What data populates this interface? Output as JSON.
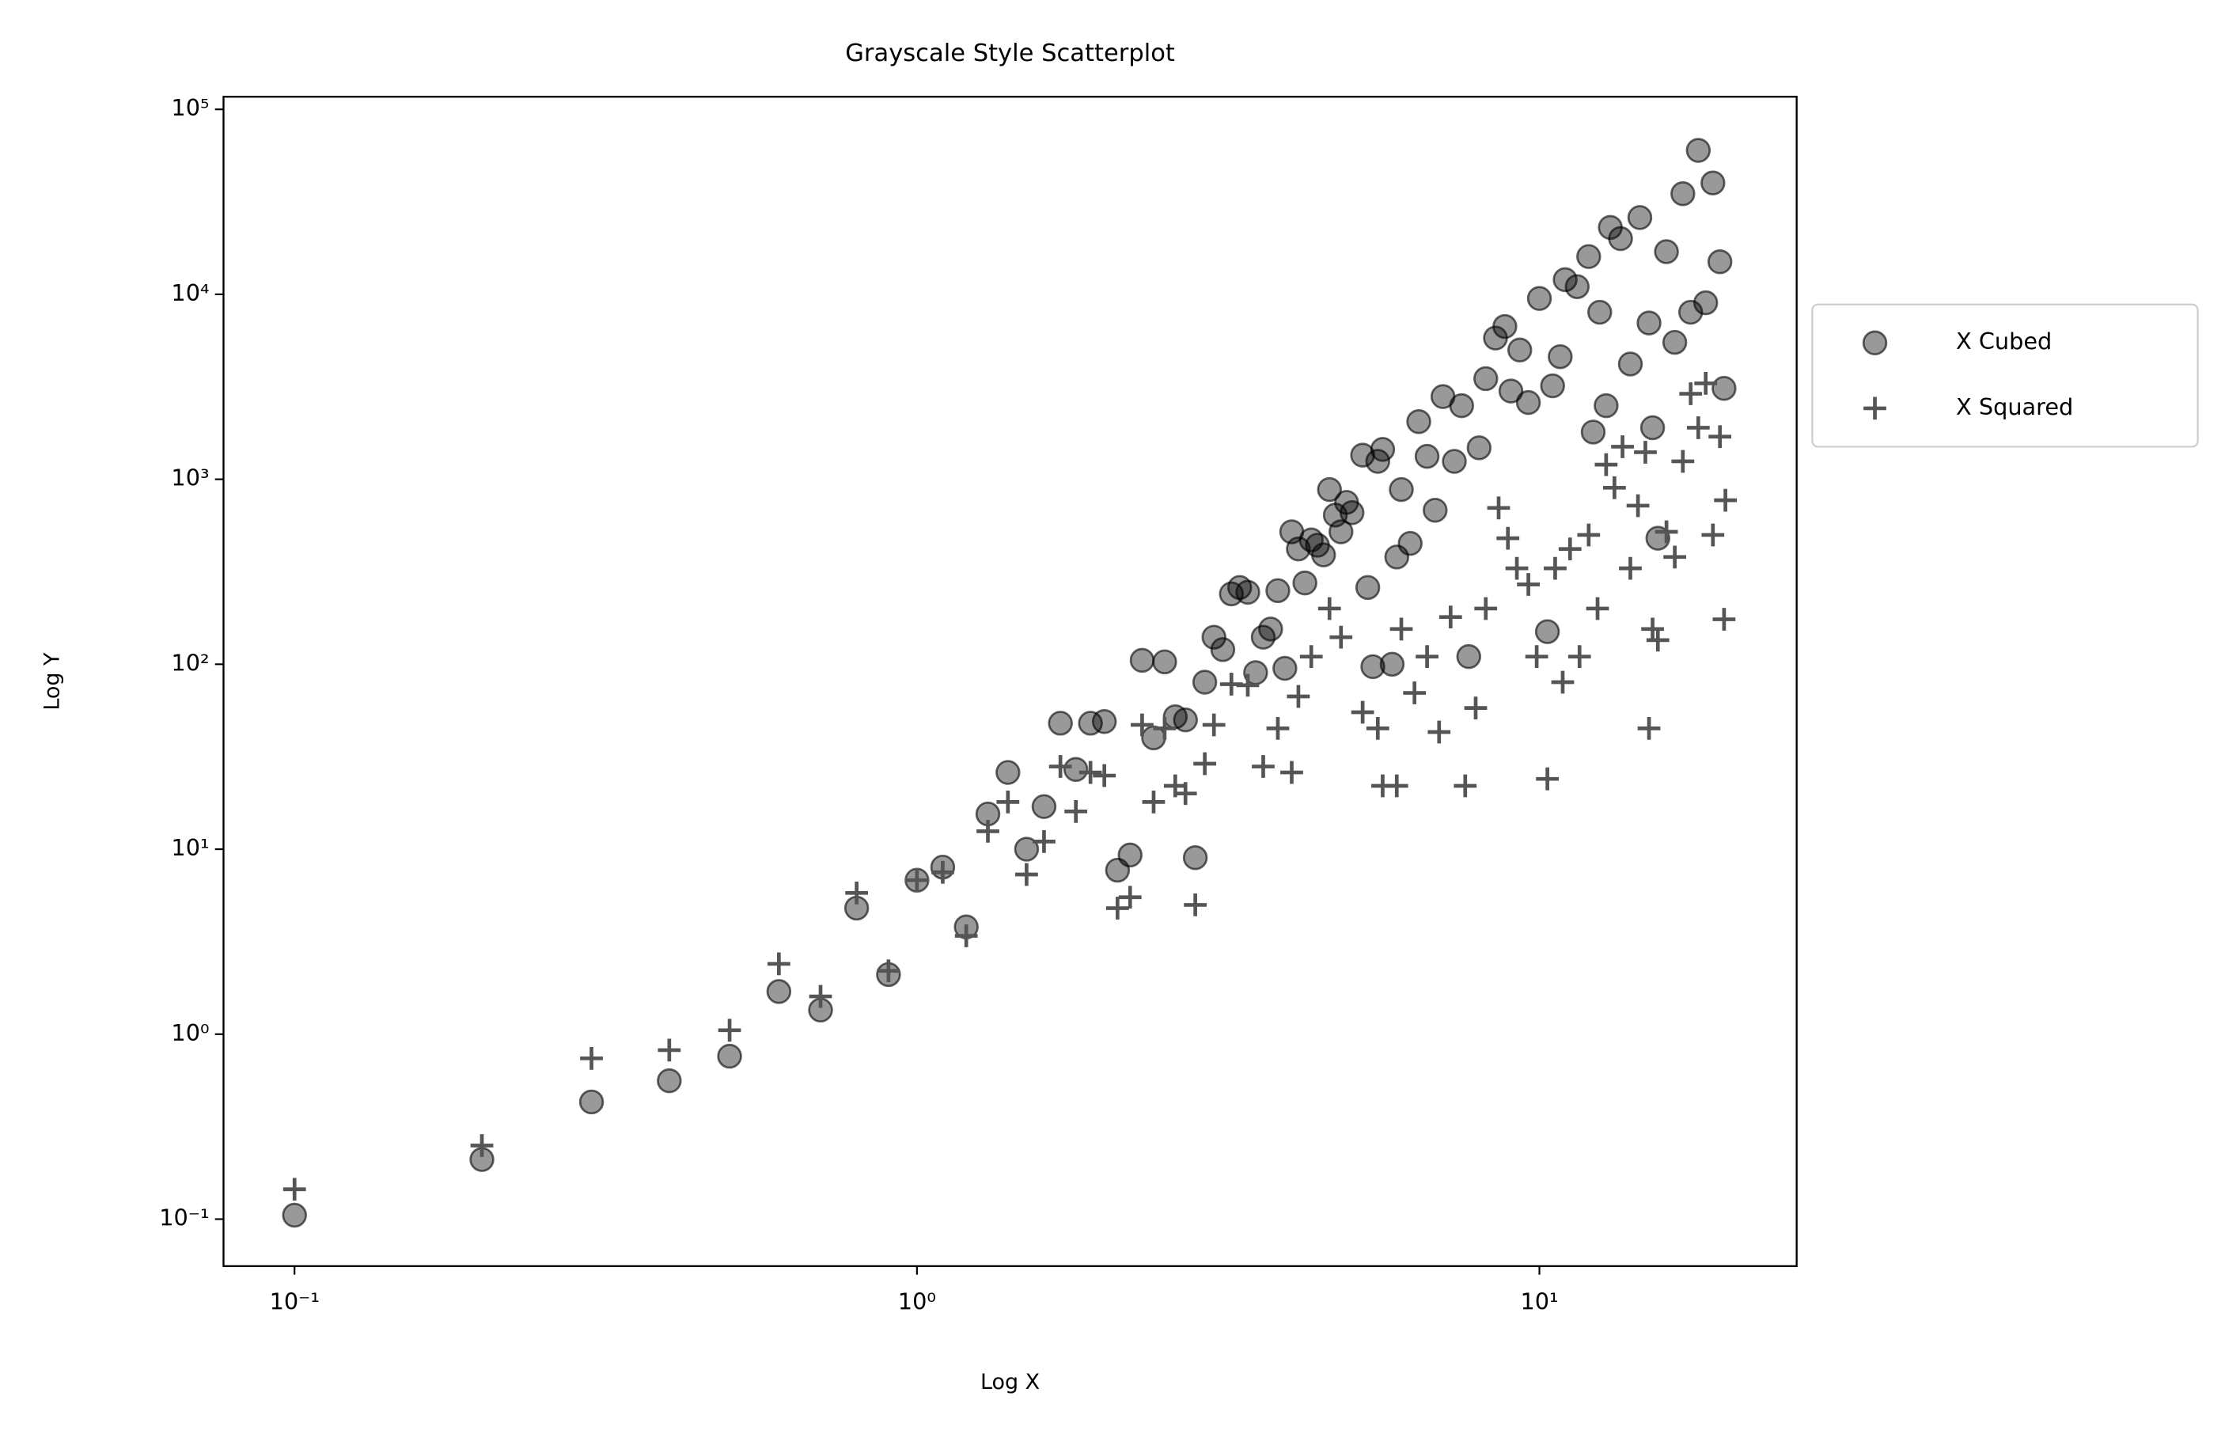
{
  "chart_data": {
    "type": "scatter",
    "title": "Grayscale Style Scatterplot",
    "x_label": "Log X",
    "y_label": "Log Y",
    "x_scale": "log",
    "y_scale": "log",
    "legend": "right",
    "xlim": [
      0.0769,
      25.9
    ],
    "ylim": [
      0.0557,
      117000
    ],
    "xticks": [
      {
        "value": 0.1,
        "label": "10⁻¹"
      },
      {
        "value": 1,
        "label": "10⁰"
      },
      {
        "value": 10,
        "label": "10¹"
      }
    ],
    "yticks": [
      {
        "value": 0.1,
        "label": "10⁻¹"
      },
      {
        "value": 1,
        "label": "10⁰"
      },
      {
        "value": 10,
        "label": "10¹"
      },
      {
        "value": 100,
        "label": "10²"
      },
      {
        "value": 1000,
        "label": "10³"
      },
      {
        "value": 10000,
        "label": "10⁴"
      },
      {
        "value": 100000,
        "label": "10⁵"
      }
    ],
    "series": [
      {
        "name": "X Cubed",
        "marker": "circle",
        "color": "#000000",
        "alpha": 0.4,
        "x": [
          0.1,
          0.2,
          0.3,
          0.4,
          0.5,
          0.6,
          0.7,
          0.8,
          0.9,
          1.0,
          1.1,
          1.2,
          1.3,
          1.4,
          1.5,
          1.6,
          1.7,
          1.8,
          1.9,
          2.0,
          2.1,
          2.2,
          2.3,
          2.4,
          2.5,
          2.6,
          2.7,
          2.8,
          2.9,
          3.0,
          3.1,
          3.2,
          3.3,
          3.4,
          3.5,
          3.6,
          3.7,
          3.8,
          3.9,
          4.0,
          4.1,
          4.2,
          4.3,
          4.4,
          4.5,
          4.6,
          4.7,
          4.8,
          4.9,
          5.0,
          5.2,
          5.3,
          5.4,
          5.5,
          5.6,
          5.8,
          5.9,
          6.0,
          6.2,
          6.4,
          6.6,
          6.8,
          7.0,
          7.3,
          7.5,
          7.7,
          8.0,
          8.2,
          8.5,
          8.8,
          9.0,
          9.3,
          9.6,
          10.0,
          10.3,
          10.5,
          10.8,
          11.0,
          11.5,
          12.0,
          12.2,
          12.5,
          12.8,
          13.0,
          13.5,
          14.0,
          14.5,
          15.0,
          15.2,
          15.5,
          16.0,
          16.5,
          17.0,
          17.5,
          18.0,
          18.5,
          19.0,
          19.5,
          19.8
        ],
        "values": [
          0.105,
          0.21,
          0.43,
          0.56,
          0.76,
          1.7,
          1.35,
          4.8,
          2.1,
          6.8,
          8,
          3.8,
          15.5,
          26,
          10,
          17,
          48,
          27,
          48,
          49,
          7.7,
          9.3,
          105,
          40,
          103,
          52,
          50,
          9,
          80,
          140,
          120,
          240,
          260,
          245,
          90,
          140,
          155,
          250,
          95,
          520,
          420,
          275,
          470,
          440,
          390,
          880,
          640,
          520,
          750,
          660,
          1350,
          260,
          97,
          1250,
          1450,
          100,
          380,
          880,
          450,
          2050,
          1330,
          680,
          2800,
          1250,
          2500,
          110,
          1480,
          3500,
          5800,
          6700,
          3000,
          5000,
          2600,
          9500,
          150,
          3200,
          4600,
          12000,
          11000,
          16000,
          1800,
          8000,
          2500,
          23000,
          20000,
          4200,
          26000,
          7000,
          1900,
          480,
          17000,
          5500,
          35000,
          8000,
          60000,
          9000,
          40000,
          15000,
          3100
        ]
      },
      {
        "name": "X Squared",
        "marker": "plus",
        "color": "#555555",
        "alpha": 1,
        "x": [
          0.1,
          0.2,
          0.3,
          0.4,
          0.5,
          0.6,
          0.7,
          0.8,
          0.9,
          1.0,
          1.1,
          1.2,
          1.3,
          1.4,
          1.5,
          1.6,
          1.7,
          1.8,
          1.9,
          2.0,
          2.1,
          2.2,
          2.3,
          2.4,
          2.5,
          2.6,
          2.7,
          2.8,
          2.9,
          3.0,
          3.2,
          3.4,
          3.6,
          3.8,
          4.0,
          4.1,
          4.3,
          4.6,
          4.8,
          5.2,
          5.5,
          5.6,
          5.9,
          6.0,
          6.3,
          6.6,
          6.9,
          7.2,
          7.6,
          7.9,
          8.2,
          8.6,
          8.9,
          9.2,
          9.6,
          9.9,
          10.3,
          10.6,
          10.9,
          11.2,
          11.6,
          12.0,
          12.4,
          12.8,
          13.2,
          13.6,
          14.0,
          14.4,
          14.8,
          15.0,
          15.2,
          15.5,
          16.0,
          16.5,
          17.0,
          17.5,
          18.0,
          18.5,
          19.0,
          19.5,
          19.8,
          19.9
        ],
        "values": [
          0.145,
          0.25,
          0.74,
          0.82,
          1.05,
          2.4,
          1.6,
          5.8,
          2.2,
          6.8,
          7.5,
          3.4,
          12.5,
          18,
          7.3,
          11,
          28,
          16,
          26,
          25,
          4.8,
          5.5,
          47,
          18,
          45,
          22,
          20,
          5,
          29,
          47,
          78,
          77,
          28,
          45,
          26,
          67,
          110,
          200,
          140,
          55,
          45,
          22,
          22,
          155,
          70,
          110,
          43,
          180,
          22,
          58,
          200,
          700,
          480,
          330,
          270,
          110,
          24,
          330,
          80,
          420,
          110,
          500,
          200,
          1200,
          900,
          1500,
          330,
          720,
          1400,
          45,
          155,
          135,
          520,
          380,
          1250,
          2900,
          1900,
          3300,
          500,
          1700,
          175,
          770
        ]
      }
    ]
  }
}
